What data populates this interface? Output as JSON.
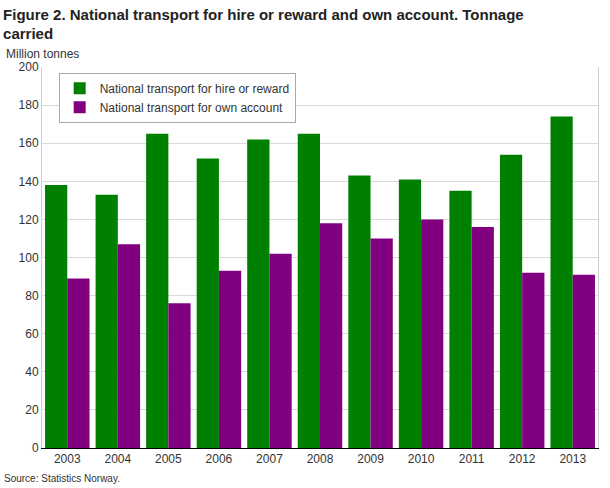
{
  "chart_data": {
    "type": "bar",
    "title": "Figure 2. National transport for hire or reward and own account. Tonnage carried",
    "y_label": "Million tonnes",
    "source": "Source: Statistics Norway.",
    "categories": [
      "2003",
      "2004",
      "2005",
      "2006",
      "2007",
      "2008",
      "2009",
      "2010",
      "2011",
      "2012",
      "2013"
    ],
    "series": [
      {
        "name": "National transport for hire or reward",
        "color": "#008000",
        "values": [
          138,
          133,
          165,
          152,
          162,
          165,
          143,
          141,
          135,
          154,
          174
        ]
      },
      {
        "name": "National transport for own account",
        "color": "#800080",
        "values": [
          89,
          107,
          76,
          93,
          102,
          118,
          110,
          120,
          116,
          92,
          91
        ]
      }
    ],
    "ylim": [
      0,
      200
    ],
    "yticks": [
      0,
      20,
      40,
      60,
      80,
      100,
      120,
      140,
      160,
      180,
      200
    ],
    "grid": true,
    "legend": "upper left"
  }
}
